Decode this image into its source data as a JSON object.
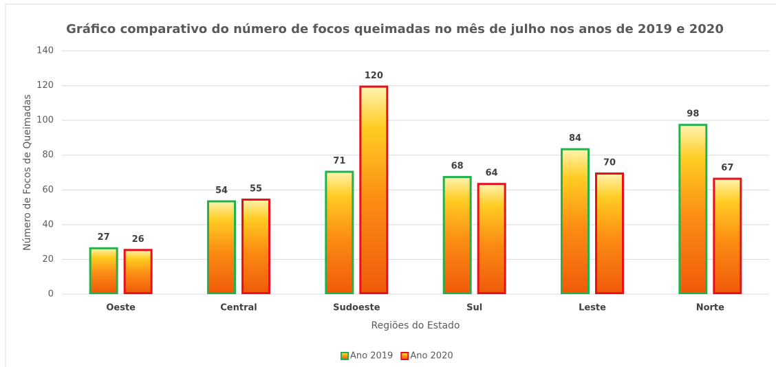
{
  "chart_data": {
    "type": "bar",
    "title": "Gráfico comparativo do número de focos queimadas no mês de julho nos anos de 2019 e 2020",
    "x_label": "Regiões do Estado",
    "y_label": "Número de Focos de Queimadas",
    "categories": [
      "Oeste",
      "Central",
      "Sudoeste",
      "Sul",
      "Leste",
      "Norte"
    ],
    "series": [
      {
        "name": "Ano 2019",
        "color": "#22b14c",
        "values": [
          27,
          54,
          71,
          68,
          84,
          98
        ]
      },
      {
        "name": "Ano 2020",
        "color": "#e8101a",
        "values": [
          26,
          55,
          120,
          64,
          70,
          67
        ]
      }
    ],
    "ylim": [
      0,
      140
    ],
    "yticks": [
      0,
      20,
      40,
      60,
      80,
      100,
      120,
      140
    ],
    "grid": true,
    "legend": "bottom"
  }
}
